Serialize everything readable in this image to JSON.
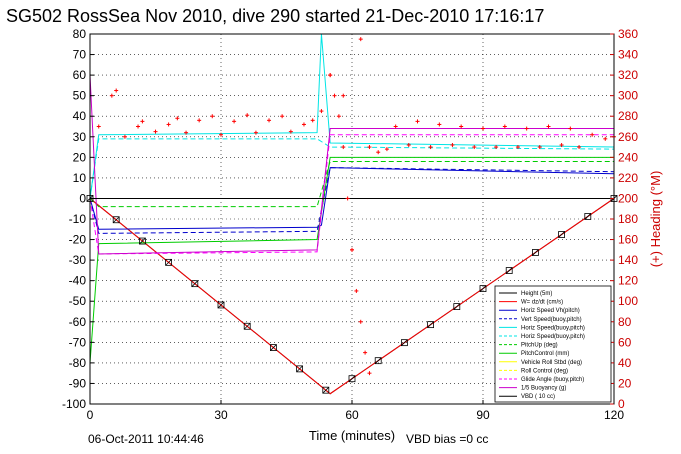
{
  "chart_data": {
    "type": "line",
    "title": "SG502 RossSea Nov 2010, dive 290 started 21-Dec-2010 17:16:17",
    "xlabel": "Time (minutes)",
    "ylabel_right": "(+) Heading (°M)",
    "xlim": [
      0,
      120
    ],
    "ylim": [
      -100,
      80
    ],
    "ylim_right": [
      0,
      360
    ],
    "x_ticks": [
      0,
      30,
      60,
      90,
      120
    ],
    "y_ticks": [
      -100,
      -90,
      -80,
      -70,
      -60,
      -50,
      -40,
      -30,
      -20,
      -10,
      0,
      10,
      20,
      30,
      40,
      50,
      60,
      70,
      80
    ],
    "y_ticks_right": [
      0,
      20,
      40,
      60,
      80,
      100,
      120,
      140,
      160,
      180,
      200,
      220,
      240,
      260,
      280,
      300,
      320,
      340,
      360
    ],
    "grid": true,
    "legend_position": "bottom-right",
    "footer_left": "06-Oct-2011 10:44:46",
    "footer_right": "VBD bias =0 cc",
    "series": [
      {
        "name": "Height (5m)",
        "color": "#000000",
        "style": "solid",
        "x": [
          0,
          55,
          120
        ],
        "y": [
          0,
          -95,
          0
        ]
      },
      {
        "name": "W= dz/dt (cm/s)",
        "color": "#ff0000",
        "style": "solid",
        "x": [
          0,
          55,
          120
        ],
        "y": [
          0,
          -95,
          0
        ]
      },
      {
        "name": "Horiz Speed Vh(pitch)",
        "color": "#0000cc",
        "style": "solid",
        "x": [
          0,
          2,
          52,
          53,
          55,
          120
        ],
        "y": [
          0,
          -15,
          -14,
          -13,
          15,
          12
        ]
      },
      {
        "name": "Vert Speed(buoy,pitch)",
        "color": "#0000cc",
        "style": "dashed",
        "x": [
          0,
          2,
          52,
          55,
          120
        ],
        "y": [
          0,
          -17,
          -16,
          15,
          13
        ]
      },
      {
        "name": "Horiz Speed(buoy,pitch)",
        "color": "#00e5e5",
        "style": "solid",
        "x": [
          0,
          2,
          52,
          53,
          55,
          120
        ],
        "y": [
          0,
          31,
          32,
          80,
          27,
          25
        ]
      },
      {
        "name": "Horiz Speed(buoy,pitch)",
        "color": "#00e5e5",
        "style": "dashed",
        "x": [
          0,
          2,
          52,
          55,
          120
        ],
        "y": [
          0,
          29,
          29,
          25,
          24
        ]
      },
      {
        "name": "PitchUp (deg)",
        "color": "#00cc00",
        "style": "dashed",
        "x": [
          0,
          2,
          52,
          55,
          120
        ],
        "y": [
          0,
          -4,
          -4,
          18,
          18
        ]
      },
      {
        "name": "PitchControl (mm)",
        "color": "#00cc00",
        "style": "solid",
        "x": [
          0,
          2,
          52,
          55,
          120
        ],
        "y": [
          -80,
          -22,
          -20,
          20,
          20
        ]
      },
      {
        "name": "Vehicle Roll Stbd (deg)",
        "color": "#ffff00",
        "style": "solid",
        "x": [
          0,
          2,
          52,
          55,
          120
        ],
        "y": [
          0,
          0,
          0,
          0,
          0
        ]
      },
      {
        "name": "Roll Control (deg)",
        "color": "#ffff00",
        "style": "dashed",
        "x": [
          0,
          120
        ],
        "y": [
          0,
          0
        ]
      },
      {
        "name": "Glide Angle (buoy,pitch)",
        "color": "#ff00ff",
        "style": "dashed",
        "x": [
          0,
          2,
          52,
          55,
          120
        ],
        "y": [
          0,
          -27,
          -26,
          31,
          31
        ]
      },
      {
        "name": "1/5 Buoyancy (g)",
        "color": "#cc00cc",
        "style": "solid",
        "x": [
          0,
          2,
          52,
          55,
          120
        ],
        "y": [
          60,
          -27,
          -25,
          34,
          34
        ]
      },
      {
        "name": "VBD ( 10 cc)",
        "color": "#000000",
        "style": "solid",
        "x": [
          0,
          120
        ],
        "y": [
          0,
          0
        ]
      }
    ],
    "heading": {
      "color": "#ff0000",
      "x": [
        2,
        5,
        6,
        8,
        11,
        12,
        15,
        18,
        20,
        22,
        25,
        28,
        30,
        33,
        36,
        38,
        41,
        44,
        46,
        49,
        51,
        53,
        55,
        58,
        60,
        62,
        64,
        66,
        68,
        70,
        73,
        75,
        78,
        80,
        83,
        85,
        88,
        90,
        93,
        95,
        98,
        100,
        103,
        105,
        108,
        110,
        112,
        115,
        118,
        120
      ],
      "y": [
        270,
        300,
        305,
        260,
        270,
        275,
        265,
        272,
        278,
        264,
        276,
        280,
        262,
        275,
        281,
        264,
        276,
        280,
        265,
        272,
        276,
        285,
        320,
        300,
        150,
        355,
        250,
        245,
        248,
        270,
        252,
        275,
        250,
        272,
        252,
        270,
        250,
        268,
        250,
        270,
        250,
        268,
        250,
        270,
        252,
        268,
        250,
        262,
        258,
        260
      ]
    },
    "heading_dive_x": [
      55,
      56,
      57,
      58,
      59,
      60,
      61,
      62,
      63,
      64
    ],
    "heading_dive_y": [
      320,
      300,
      280,
      250,
      200,
      150,
      110,
      80,
      50,
      30
    ]
  }
}
